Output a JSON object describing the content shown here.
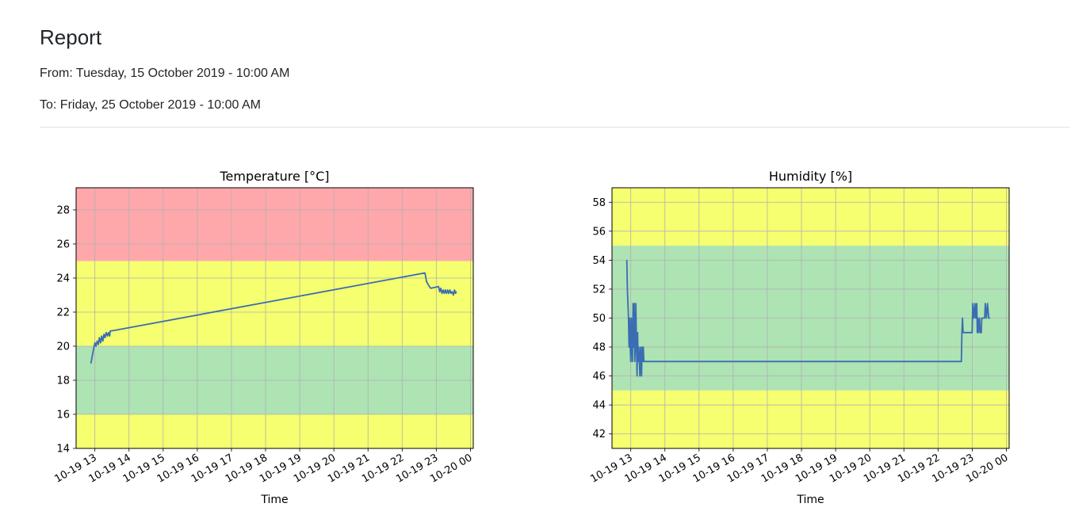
{
  "report": {
    "title": "Report",
    "from": "From: Tuesday, 15 October 2019 - 10:00 AM",
    "to": "To: Friday, 25 October 2019 - 10:00 AM"
  },
  "colors": {
    "line": "#3a6db1",
    "red_zone": "#ffa8ab",
    "yellow_zone": "#f6ff6f",
    "green_zone": "#aee3b4",
    "grid": "#b0b0b0"
  },
  "chart_data": [
    {
      "type": "line",
      "title": "Temperature [°C]",
      "xlabel": "Time",
      "ylabel": "",
      "xlim": [
        "2019-10-19 12:27",
        "2019-10-20 00:05"
      ],
      "ylim": [
        14,
        29.3
      ],
      "xticks": [
        "10-19 13",
        "10-19 14",
        "10-19 15",
        "10-19 16",
        "10-19 17",
        "10-19 18",
        "10-19 19",
        "10-19 20",
        "10-19 21",
        "10-19 22",
        "10-19 23",
        "10-20 00"
      ],
      "yticks": [
        "14",
        "16",
        "18",
        "20",
        "22",
        "24",
        "26",
        "28"
      ],
      "grid": true,
      "bands": [
        {
          "from": 25,
          "to": 29.3,
          "color": "red"
        },
        {
          "from": 20,
          "to": 25,
          "color": "yellow"
        },
        {
          "from": 16,
          "to": 20,
          "color": "green"
        },
        {
          "from": 14,
          "to": 16,
          "color": "yellow"
        }
      ],
      "series": [
        {
          "x": [
            "2019-10-19 12:53",
            "2019-10-19 12:58",
            "2019-10-19 13:00",
            "2019-10-19 13:02",
            "2019-10-19 13:04",
            "2019-10-19 13:06",
            "2019-10-19 13:08",
            "2019-10-19 13:10",
            "2019-10-19 13:12",
            "2019-10-19 13:14",
            "2019-10-19 13:16",
            "2019-10-19 13:18",
            "2019-10-19 13:20",
            "2019-10-19 13:22",
            "2019-10-19 13:24",
            "2019-10-19 13:26",
            "2019-10-19 13:27",
            "2019-10-19 13:30",
            "2019-10-19 22:40",
            "2019-10-19 22:43",
            "2019-10-19 22:46",
            "2019-10-19 22:50",
            "2019-10-19 23:04",
            "2019-10-19 23:06",
            "2019-10-19 23:08",
            "2019-10-19 23:10",
            "2019-10-19 23:12",
            "2019-10-19 23:14",
            "2019-10-19 23:16",
            "2019-10-19 23:18",
            "2019-10-19 23:20",
            "2019-10-19 23:22",
            "2019-10-19 23:24",
            "2019-10-19 23:26",
            "2019-10-19 23:28",
            "2019-10-19 23:30",
            "2019-10-19 23:32",
            "2019-10-19 23:34",
            "2019-10-19 23:35"
          ],
          "y": [
            19.0,
            19.9,
            20.2,
            20.0,
            20.3,
            20.1,
            20.5,
            20.2,
            20.6,
            20.3,
            20.7,
            20.5,
            20.8,
            20.6,
            20.8,
            20.6,
            20.9,
            20.9,
            24.3,
            23.8,
            23.6,
            23.4,
            23.5,
            23.2,
            23.4,
            23.1,
            23.3,
            23.1,
            23.3,
            23.1,
            23.3,
            23.1,
            23.3,
            23.1,
            23.2,
            23.0,
            23.3,
            23.1,
            23.2
          ]
        }
      ]
    },
    {
      "type": "line",
      "title": "Humidity [%]",
      "xlabel": "Time",
      "ylabel": "",
      "xlim": [
        "2019-10-19 12:27",
        "2019-10-20 00:05"
      ],
      "ylim": [
        41,
        59
      ],
      "xticks": [
        "10-19 13",
        "10-19 14",
        "10-19 15",
        "10-19 16",
        "10-19 17",
        "10-19 18",
        "10-19 19",
        "10-19 20",
        "10-19 21",
        "10-19 22",
        "10-19 23",
        "10-20 00"
      ],
      "yticks": [
        "42",
        "44",
        "46",
        "48",
        "50",
        "52",
        "54",
        "56",
        "58"
      ],
      "grid": true,
      "bands": [
        {
          "from": 55,
          "to": 59,
          "color": "yellow"
        },
        {
          "from": 45,
          "to": 55,
          "color": "green"
        },
        {
          "from": 41,
          "to": 45,
          "color": "yellow"
        }
      ],
      "series": [
        {
          "x": [
            "2019-10-19 12:53",
            "2019-10-19 12:54",
            "2019-10-19 12:55",
            "2019-10-19 12:56",
            "2019-10-19 12:57",
            "2019-10-19 12:58",
            "2019-10-19 12:59",
            "2019-10-19 13:00",
            "2019-10-19 13:01",
            "2019-10-19 13:02",
            "2019-10-19 13:03",
            "2019-10-19 13:04",
            "2019-10-19 13:05",
            "2019-10-19 13:06",
            "2019-10-19 13:07",
            "2019-10-19 13:08",
            "2019-10-19 13:09",
            "2019-10-19 13:10",
            "2019-10-19 13:11",
            "2019-10-19 13:12",
            "2019-10-19 13:13",
            "2019-10-19 13:14",
            "2019-10-19 13:15",
            "2019-10-19 13:16",
            "2019-10-19 13:17",
            "2019-10-19 13:18",
            "2019-10-19 13:19",
            "2019-10-19 13:20",
            "2019-10-19 13:21",
            "2019-10-19 13:22",
            "2019-10-19 13:23",
            "2019-10-19 13:24",
            "2019-10-19 13:25",
            "2019-10-19 13:26",
            "2019-10-19 13:27",
            "2019-10-19 22:40",
            "2019-10-19 22:41",
            "2019-10-19 22:42",
            "2019-10-19 22:43",
            "2019-10-19 22:44",
            "2019-10-19 23:00",
            "2019-10-19 23:01",
            "2019-10-19 23:03",
            "2019-10-19 23:05",
            "2019-10-19 23:06",
            "2019-10-19 23:08",
            "2019-10-19 23:09",
            "2019-10-19 23:10",
            "2019-10-19 23:11",
            "2019-10-19 23:13",
            "2019-10-19 23:14",
            "2019-10-19 23:16",
            "2019-10-19 23:17",
            "2019-10-19 23:20",
            "2019-10-19 23:22",
            "2019-10-19 23:23",
            "2019-10-19 23:25",
            "2019-10-19 23:27",
            "2019-10-19 23:29",
            "2019-10-19 23:31"
          ],
          "y": [
            54,
            52,
            51,
            50,
            48,
            50,
            48,
            47,
            50,
            49,
            47,
            51,
            48,
            51,
            47,
            48,
            51,
            48,
            46,
            49,
            47,
            48,
            47,
            46,
            48,
            47,
            46,
            48,
            47,
            48,
            47,
            47,
            47,
            47,
            47,
            47,
            47,
            49,
            50,
            49,
            49,
            51,
            50,
            51,
            50,
            51,
            49,
            50,
            49,
            50,
            49,
            49,
            50,
            50,
            50,
            51,
            50,
            51,
            50,
            50
          ]
        }
      ]
    }
  ]
}
